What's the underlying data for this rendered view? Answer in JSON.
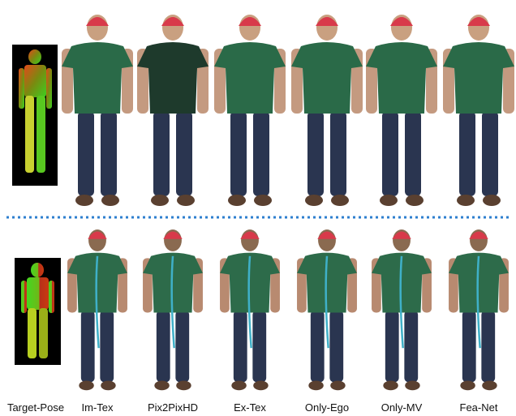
{
  "columns": [
    "Target-Pose",
    "Im-Tex",
    "Pix2PixHD",
    "Ex-Tex",
    "Only-Ego",
    "Only-MV",
    "Fea-Net"
  ]
}
